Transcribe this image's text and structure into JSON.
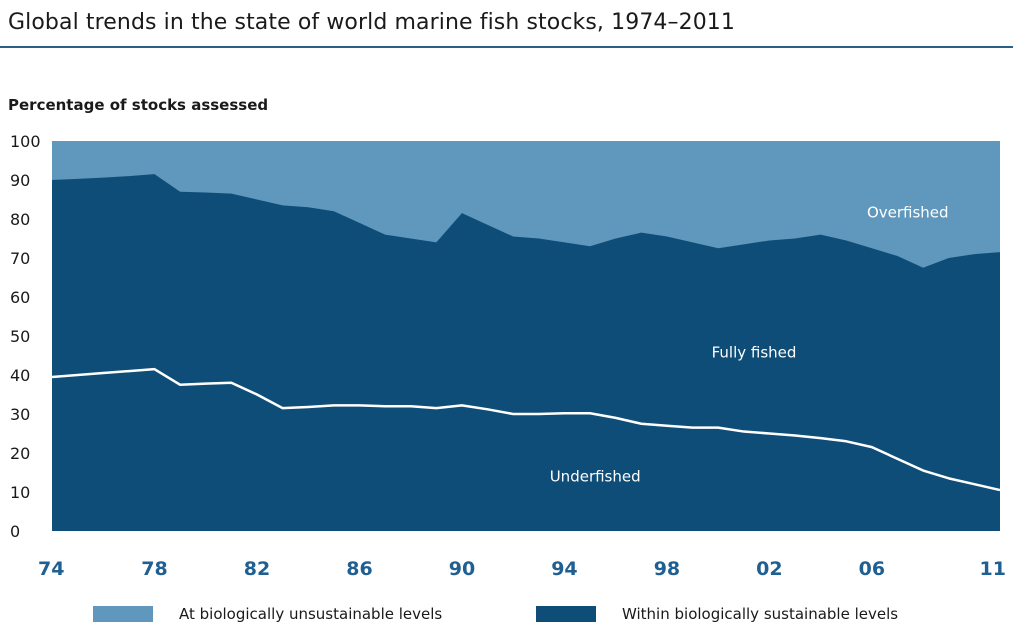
{
  "chart_data": {
    "type": "area",
    "title": "Global trends in the state of world marine fish stocks, 1974–2011",
    "ylabel": "Percentage of stocks assessed",
    "ylim": [
      0,
      100
    ],
    "xlim": [
      1974,
      2011
    ],
    "yticks": [
      "0",
      "10",
      "20",
      "30",
      "40",
      "50",
      "60",
      "70",
      "80",
      "90",
      "100"
    ],
    "xtick_years": [
      1974,
      1978,
      1982,
      1986,
      1990,
      1994,
      1998,
      2002,
      2006,
      2011
    ],
    "xtick_labels": [
      "74",
      "78",
      "82",
      "86",
      "90",
      "94",
      "98",
      "02",
      "06",
      "11"
    ],
    "series": [
      {
        "name": "Overfished",
        "color": "#5f97bd",
        "x": [
          1974,
          1978,
          1982,
          1986,
          1990,
          1994,
          1998,
          2002,
          2006,
          2011
        ],
        "values": [
          10,
          8.5,
          14.5,
          20,
          18.5,
          27,
          25,
          26,
          28,
          28.5
        ]
      }
    ],
    "boundaries": {
      "upper": {
        "x": [
          1974,
          1975,
          1976,
          1977,
          1978,
          1979,
          1980,
          1981,
          1982,
          1983,
          1984,
          1985,
          1986,
          1987,
          1988,
          1989,
          1990,
          1991,
          1992,
          1993,
          1994,
          1995,
          1996,
          1997,
          1998,
          1999,
          2000,
          2001,
          2002,
          2003,
          2004,
          2005,
          2006,
          2007,
          2008,
          2009,
          2010,
          2011
        ],
        "values": [
          90,
          90.3,
          90.6,
          91,
          91.5,
          87,
          86.8,
          86.5,
          85,
          83.5,
          83,
          82,
          79,
          76,
          75,
          74,
          81.5,
          78.5,
          75.5,
          75,
          74,
          73,
          75,
          76.5,
          75.5,
          74,
          72.5,
          73.5,
          74.5,
          75,
          76,
          74.5,
          72.5,
          70.5,
          67.5,
          70,
          71,
          71.5
        ]
      },
      "lower": {
        "x": [
          1974,
          1976,
          1977,
          1978,
          1979,
          1980,
          1981,
          1982,
          1983,
          1984,
          1985,
          1986,
          1987,
          1988,
          1989,
          1990,
          1991,
          1992,
          1993,
          1994,
          1995,
          1996,
          1997,
          1998,
          1999,
          2000,
          2001,
          2002,
          2003,
          2004,
          2005,
          2006,
          2007,
          2008,
          2009,
          2010,
          2011
        ],
        "values": [
          39.5,
          40.5,
          41,
          41.5,
          37.5,
          37.8,
          38,
          35,
          31.5,
          31.8,
          32.2,
          32.2,
          32,
          32,
          31.5,
          32.2,
          31.2,
          30,
          30,
          30.2,
          30.2,
          29,
          27.5,
          27,
          26.5,
          26.5,
          25.5,
          25,
          24.5,
          23.8,
          23,
          21.5,
          18.5,
          15.5,
          13.5,
          12,
          10.5
        ]
      }
    },
    "area_labels": {
      "overfished": "Overfished",
      "fully_fished": "Fully fished",
      "underfished": "Underfished"
    },
    "colors": {
      "unsustainable": "#5f97bd",
      "sustainable": "#0e4d77",
      "underfished_line": "#ffffff",
      "axis_tick_color": "#1f5f91"
    },
    "legend": [
      {
        "label": "At biologically unsustainable levels",
        "color": "#5f97bd"
      },
      {
        "label": "Within biologically sustainable levels",
        "color": "#0e4d77"
      }
    ],
    "legend_placement": "bottom",
    "grid": false
  }
}
